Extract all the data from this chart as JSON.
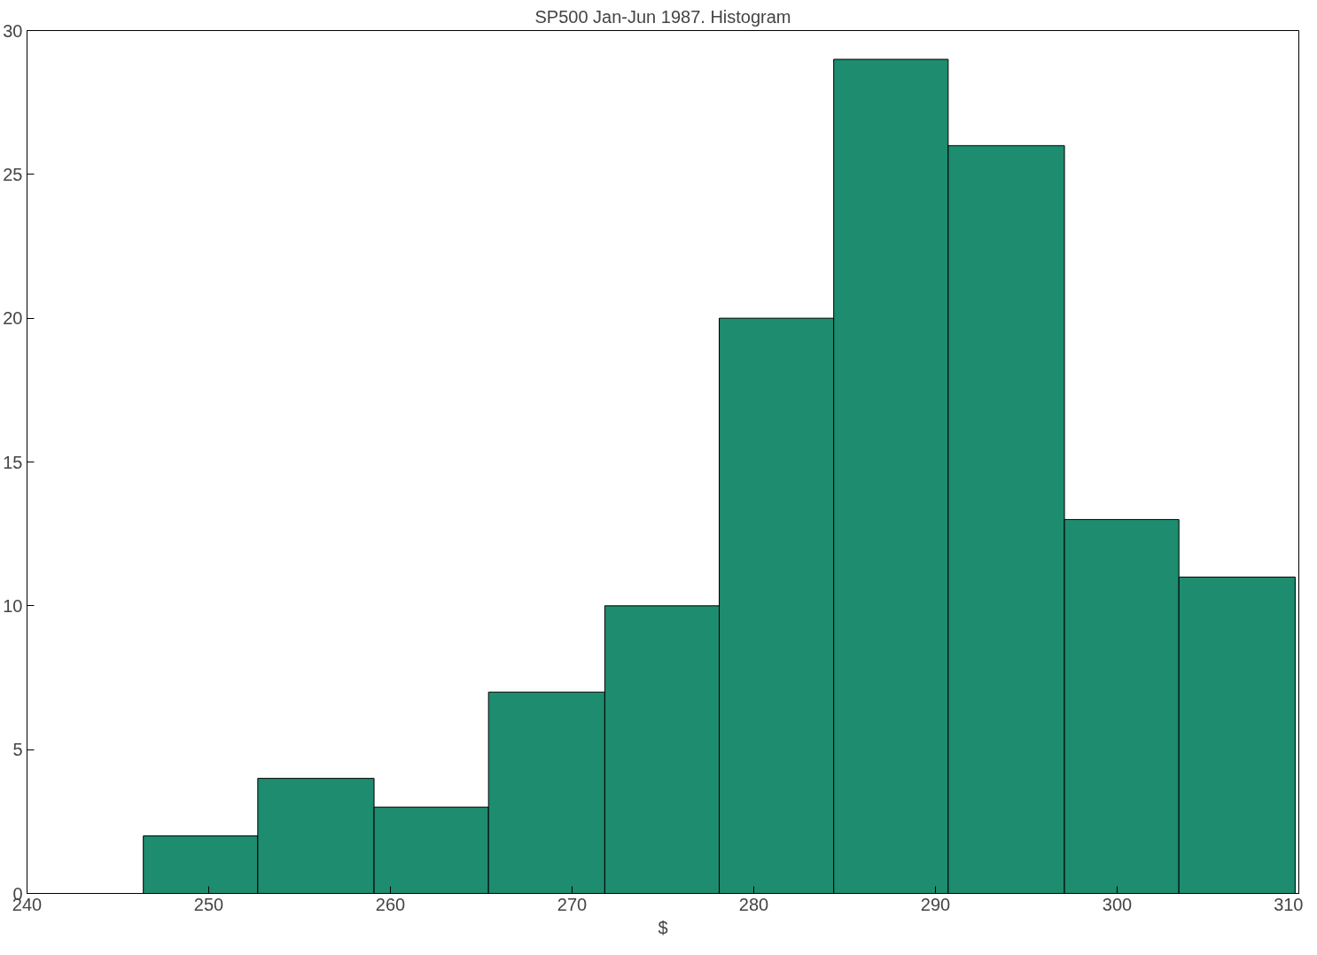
{
  "chart_data": {
    "type": "histogram",
    "title": "SP500 Jan-Jun 1987. Histogram",
    "xlabel": "$",
    "bins": [
      246.4,
      252.7,
      259.1,
      265.4,
      271.8,
      278.1,
      284.4,
      290.7,
      297.1,
      303.4,
      309.8
    ],
    "values": [
      2,
      4,
      3,
      7,
      10,
      20,
      29,
      26,
      13,
      11
    ],
    "color": "#1e8c6e",
    "xlim": [
      240,
      310
    ],
    "xticks": [
      240,
      250,
      260,
      270,
      280,
      290,
      300,
      310
    ],
    "ylim": [
      0,
      30
    ],
    "yticks": [
      0,
      5,
      10,
      15,
      20,
      25,
      30
    ],
    "grid": false
  }
}
